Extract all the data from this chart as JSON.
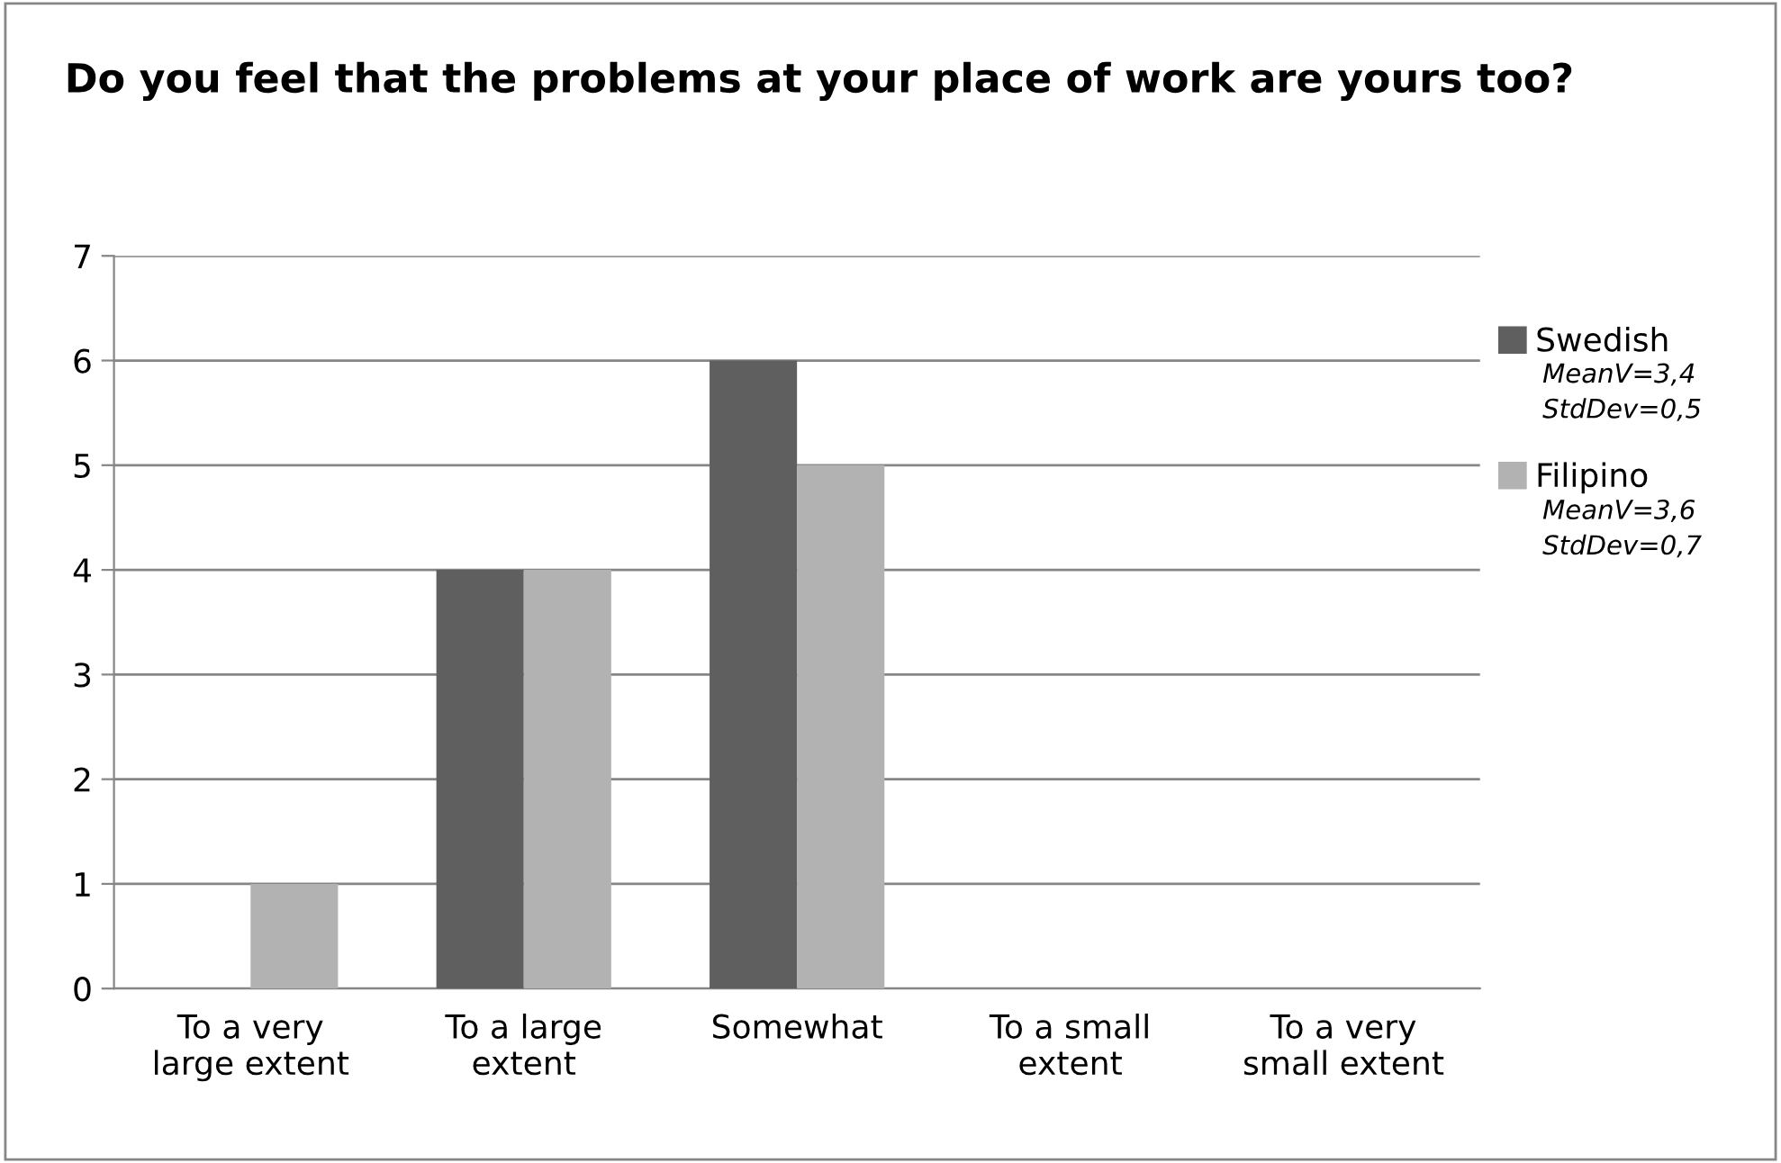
{
  "chart_data": {
    "type": "bar",
    "title": "Do you feel that the problems at your place of work are yours too?",
    "categories": [
      "To a very\nlarge extent",
      "To a large\nextent",
      "Somewhat",
      "To a small\nextent",
      "To a very\nsmall extent"
    ],
    "series": [
      {
        "name": "Swedish",
        "color": "#5f5f5f",
        "values": [
          0,
          4,
          6,
          0,
          0
        ]
      },
      {
        "name": "Filipino",
        "color": "#b2b2b2",
        "values": [
          1,
          4,
          5,
          0,
          0
        ]
      }
    ],
    "annotations": [
      "MeanV=3,4\nStdDev=0,5",
      "MeanV=3,6\nStdDev=0,7"
    ],
    "ylim": [
      0,
      7
    ],
    "yticks": [
      0,
      1,
      2,
      3,
      4,
      5,
      6,
      7
    ],
    "grid": "y",
    "legend": "right"
  }
}
